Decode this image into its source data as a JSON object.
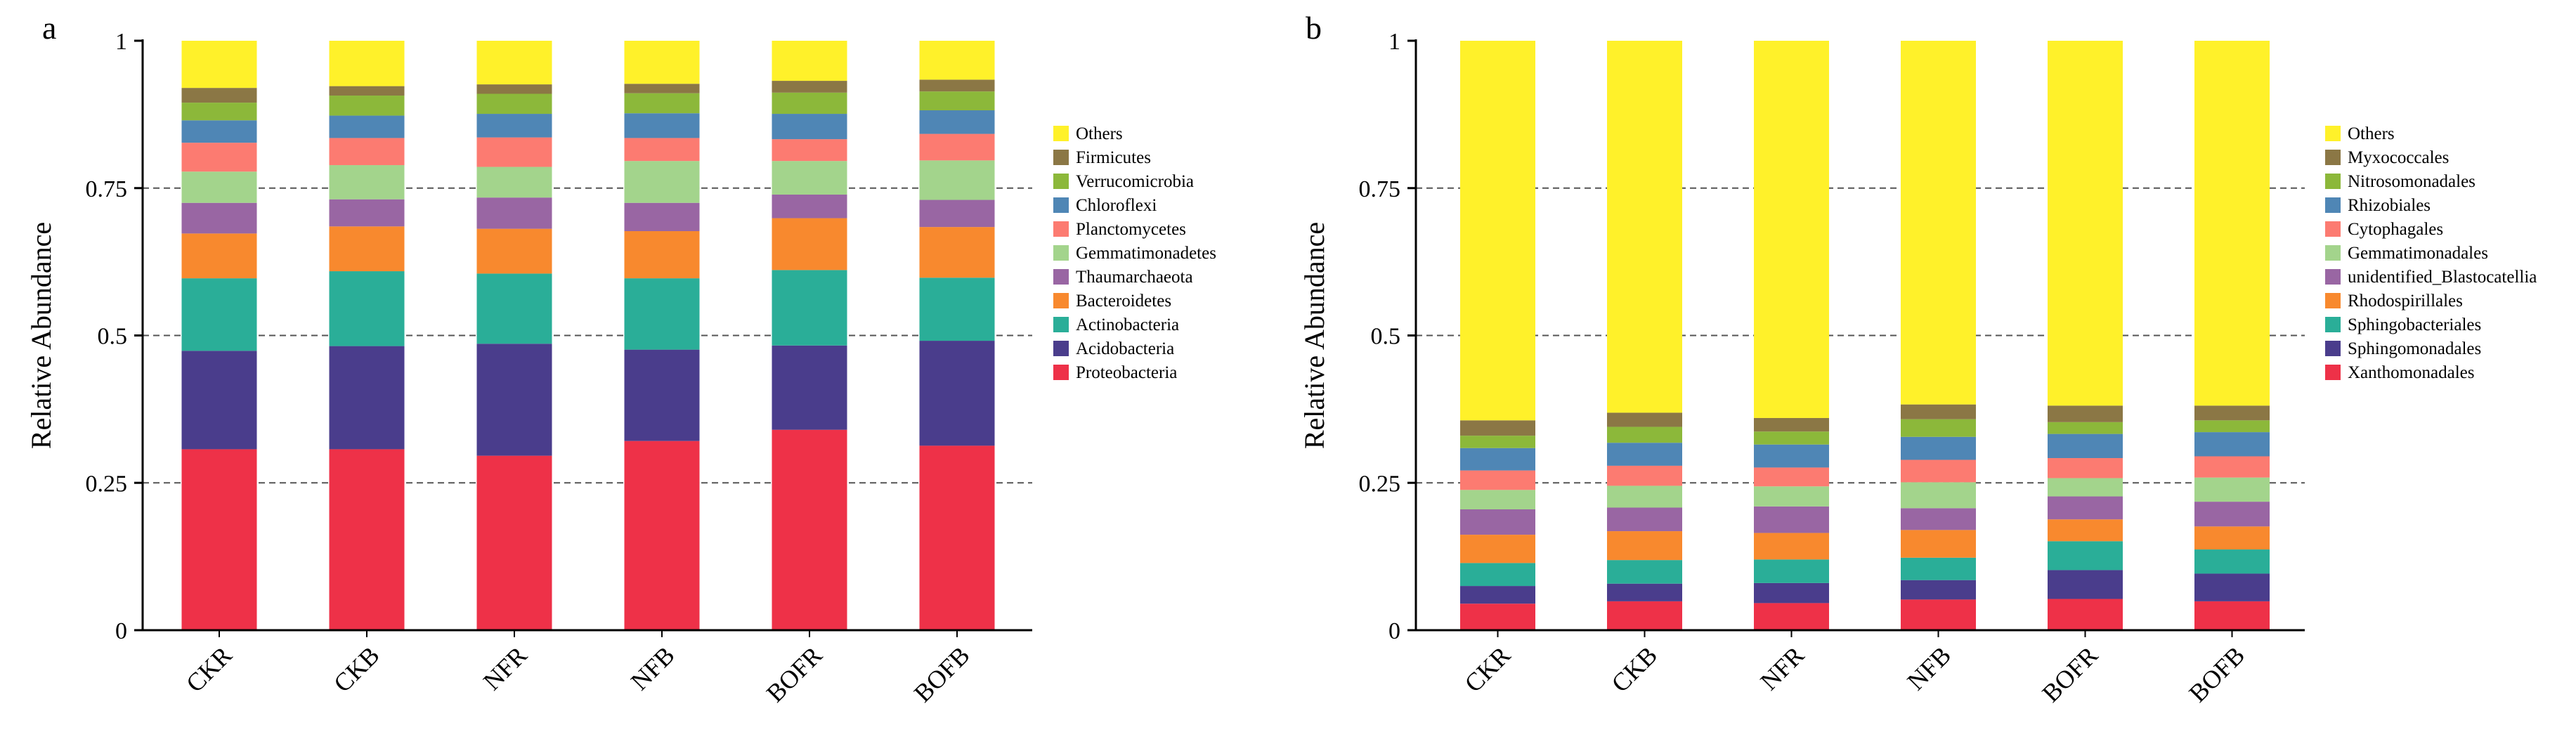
{
  "chart_data": [
    {
      "type": "bar",
      "stacked": true,
      "panel_label": "a",
      "title": "",
      "xlabel": "",
      "ylabel": "Relative Abundance",
      "ylim": [
        0,
        1
      ],
      "yticks": [
        0,
        0.25,
        0.5,
        0.75,
        1
      ],
      "ytick_labels": [
        "0",
        "0.25",
        "0.5",
        "0.75",
        "1"
      ],
      "grid": "dashed horizontal at 0.25, 0.5, 0.75",
      "legend_position": "right",
      "categories": [
        "CKR",
        "CKB",
        "NFR",
        "NFB",
        "BOFR",
        "BOFB"
      ],
      "series": [
        {
          "name": "Proteobacteria",
          "color": "#EE3148",
          "values": [
            0.307,
            0.307,
            0.296,
            0.321,
            0.34,
            0.313
          ]
        },
        {
          "name": "Acidobacteria",
          "color": "#4A3D8C",
          "values": [
            0.167,
            0.175,
            0.19,
            0.155,
            0.143,
            0.178
          ]
        },
        {
          "name": "Actinobacteria",
          "color": "#2AAE98",
          "values": [
            0.123,
            0.127,
            0.119,
            0.121,
            0.128,
            0.107
          ]
        },
        {
          "name": "Bacteroidetes",
          "color": "#F8892E",
          "values": [
            0.076,
            0.076,
            0.076,
            0.08,
            0.088,
            0.086
          ]
        },
        {
          "name": "Thaumarchaeota",
          "color": "#9966A3",
          "values": [
            0.052,
            0.046,
            0.053,
            0.048,
            0.04,
            0.046
          ]
        },
        {
          "name": "Gemmatimonadetes",
          "color": "#A3D48C",
          "values": [
            0.053,
            0.058,
            0.052,
            0.071,
            0.057,
            0.067
          ]
        },
        {
          "name": "Planctomycetes",
          "color": "#FC7B71",
          "values": [
            0.049,
            0.046,
            0.05,
            0.039,
            0.037,
            0.045
          ]
        },
        {
          "name": "Chloroflexi",
          "color": "#4F86B5",
          "values": [
            0.038,
            0.038,
            0.04,
            0.042,
            0.043,
            0.04
          ]
        },
        {
          "name": "Verrucomicrobia",
          "color": "#8CB83A",
          "values": [
            0.03,
            0.034,
            0.034,
            0.034,
            0.036,
            0.032
          ]
        },
        {
          "name": "Firmicutes",
          "color": "#8B7745",
          "values": [
            0.025,
            0.016,
            0.016,
            0.016,
            0.02,
            0.02
          ]
        },
        {
          "name": "Others",
          "color": "#FFF12A",
          "values": [
            0.08,
            0.077,
            0.074,
            0.073,
            0.068,
            0.066
          ]
        }
      ]
    },
    {
      "type": "bar",
      "stacked": true,
      "panel_label": "b",
      "title": "",
      "xlabel": "",
      "ylabel": "Relative Abundance",
      "ylim": [
        0,
        1
      ],
      "yticks": [
        0,
        0.25,
        0.5,
        0.75,
        1
      ],
      "ytick_labels": [
        "0",
        "0.25",
        "0.5",
        "0.75",
        "1"
      ],
      "grid": "dashed horizontal at 0.25, 0.5, 0.75",
      "legend_position": "right",
      "categories": [
        "CKR",
        "CKB",
        "NFR",
        "NFB",
        "BOFR",
        "BOFB"
      ],
      "series": [
        {
          "name": "Xanthomonadales",
          "color": "#EE3148",
          "values": [
            0.045,
            0.049,
            0.046,
            0.052,
            0.053,
            0.049
          ]
        },
        {
          "name": "Sphingomonadales",
          "color": "#4A3D8C",
          "values": [
            0.03,
            0.03,
            0.034,
            0.033,
            0.049,
            0.047
          ]
        },
        {
          "name": "Sphingobacteriales",
          "color": "#2AAE98",
          "values": [
            0.039,
            0.04,
            0.04,
            0.038,
            0.049,
            0.041
          ]
        },
        {
          "name": "Rhodospirillales",
          "color": "#F8892E",
          "values": [
            0.048,
            0.049,
            0.045,
            0.047,
            0.037,
            0.039
          ]
        },
        {
          "name": "unidentified_Blastocatellia",
          "color": "#9966A3",
          "values": [
            0.043,
            0.04,
            0.045,
            0.037,
            0.039,
            0.042
          ]
        },
        {
          "name": "Gemmatimonadales",
          "color": "#A3D48C",
          "values": [
            0.033,
            0.037,
            0.034,
            0.044,
            0.031,
            0.041
          ]
        },
        {
          "name": "Cytophagales",
          "color": "#FC7B71",
          "values": [
            0.033,
            0.034,
            0.032,
            0.038,
            0.034,
            0.036
          ]
        },
        {
          "name": "Rhizobiales",
          "color": "#4F86B5",
          "values": [
            0.038,
            0.039,
            0.039,
            0.039,
            0.041,
            0.041
          ]
        },
        {
          "name": "Nitrosomonadales",
          "color": "#8CB83A",
          "values": [
            0.021,
            0.027,
            0.022,
            0.03,
            0.02,
            0.02
          ]
        },
        {
          "name": "Myxococcales",
          "color": "#8B7745",
          "values": [
            0.026,
            0.024,
            0.023,
            0.025,
            0.028,
            0.025
          ]
        },
        {
          "name": "Others",
          "color": "#FFF12A",
          "values": [
            0.644,
            0.631,
            0.64,
            0.617,
            0.619,
            0.619
          ]
        }
      ]
    }
  ]
}
